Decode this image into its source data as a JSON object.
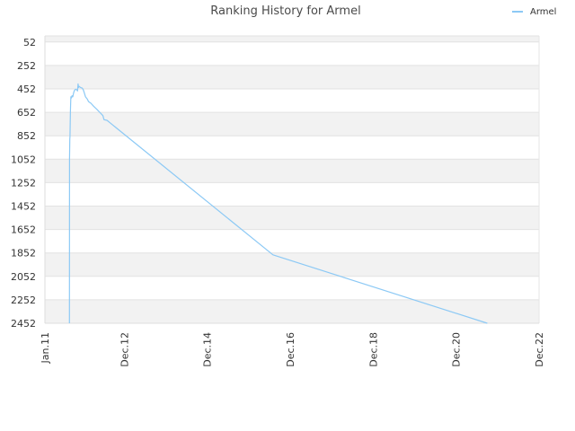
{
  "chart_data": {
    "type": "line",
    "title": "Ranking History for Armel",
    "series": [
      {
        "name": "Armel",
        "color": "#8cc9f5",
        "points": [
          [
            "2011-08-05",
            2452
          ],
          [
            "2011-08-06",
            1050
          ],
          [
            "2011-08-08",
            880
          ],
          [
            "2011-08-10",
            860
          ],
          [
            "2011-08-12",
            720
          ],
          [
            "2011-08-14",
            640
          ],
          [
            "2011-08-16",
            560
          ],
          [
            "2011-08-18",
            520
          ],
          [
            "2011-08-22",
            530
          ],
          [
            "2011-08-28",
            510
          ],
          [
            "2011-09-02",
            520
          ],
          [
            "2011-09-05",
            515
          ],
          [
            "2011-09-10",
            490
          ],
          [
            "2011-09-16",
            470
          ],
          [
            "2011-09-22",
            460
          ],
          [
            "2011-09-30",
            455
          ],
          [
            "2011-10-08",
            460
          ],
          [
            "2011-10-15",
            470
          ],
          [
            "2011-10-20",
            410
          ],
          [
            "2011-10-24",
            440
          ],
          [
            "2011-10-28",
            430
          ],
          [
            "2011-11-10",
            440
          ],
          [
            "2011-11-25",
            445
          ],
          [
            "2011-12-05",
            460
          ],
          [
            "2011-12-15",
            490
          ],
          [
            "2011-12-25",
            520
          ],
          [
            "2012-01-10",
            540
          ],
          [
            "2012-01-20",
            560
          ],
          [
            "2012-02-10",
            575
          ],
          [
            "2012-03-05",
            600
          ],
          [
            "2012-04-01",
            625
          ],
          [
            "2012-05-01",
            655
          ],
          [
            "2012-05-25",
            680
          ],
          [
            "2012-06-05",
            715
          ],
          [
            "2012-07-01",
            720
          ],
          [
            "2012-08-01",
            745
          ],
          [
            "2016-07-01",
            1868
          ],
          [
            "2021-09-01",
            2452
          ]
        ]
      }
    ],
    "y_axis": {
      "ticks": [
        "52",
        "252",
        "452",
        "652",
        "852",
        "1052",
        "1252",
        "1452",
        "1652",
        "1852",
        "2052",
        "2252",
        "2452"
      ],
      "min": 0,
      "max": 2452,
      "reversed": true
    },
    "x_axis": {
      "ticks": [
        "Jan.11",
        "Dec.12",
        "Dec.14",
        "Dec.16",
        "Dec.18",
        "Dec.20",
        "Dec.22"
      ],
      "tick_dates": [
        "2011-01-01",
        "2012-12-01",
        "2014-12-01",
        "2016-12-01",
        "2018-12-01",
        "2020-12-01",
        "2022-12-01"
      ]
    },
    "grid": true,
    "band_colors": [
      "#f2f2f2",
      "#ffffff"
    ],
    "legend_position": "top-right"
  }
}
